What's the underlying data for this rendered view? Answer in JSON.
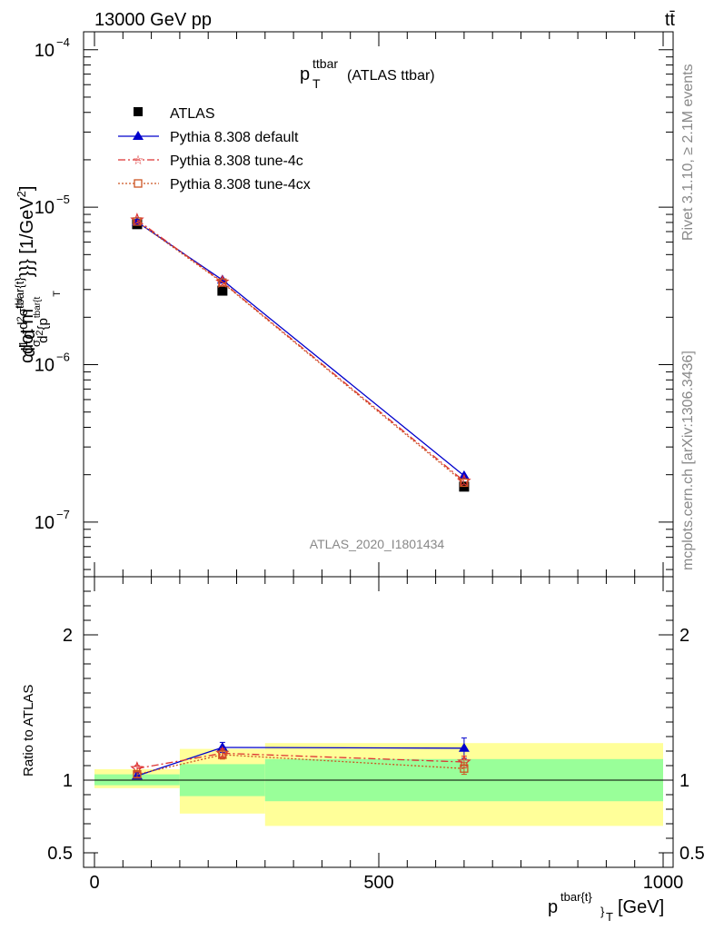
{
  "header": {
    "left": "13000 GeV pp",
    "right": "tt̄"
  },
  "side": {
    "rivet": "Rivet 3.1.10, ≥ 2.1M events",
    "source": "mcplots.cern.ch [arXiv:1306.3436]"
  },
  "chart_data": [
    {
      "type": "line",
      "title_main": "p",
      "title_sub": "T",
      "title_sup": "ttbar",
      "title_rest": "(ATLAS ttbar)",
      "watermark": "ATLAS_2020_I1801434",
      "ylabel": "d1/σdd²σ^tt/d²{p^tbar{t}}_T cdot m^tbar{t}}} [1/GeV²]",
      "ylabel_parts": {
        "d": "d",
        "one": "1",
        "sigma": "σ",
        "d2": "d",
        "dsq": "d",
        "sqr": "2",
        "sig2": "σ",
        "tt": "ttd",
        "den_d": "d",
        "den_2": "2",
        "den_p": "{p",
        "den_sup": "tbar{t",
        "den_sub": "T",
        "cdot": "cdot m",
        "m_sup": "tbar{t}",
        "close": "}}} [1/GeV",
        "unit_sup": "2",
        "unit_close": "]"
      },
      "yscale": "log",
      "ylim": [
        4.5e-08,
        0.00013
      ],
      "xlim": [
        -25,
        1000
      ],
      "y_ticks": [
        {
          "value": 0.0001,
          "base": "10",
          "exp": "−4"
        },
        {
          "value": 1e-05,
          "base": "10",
          "exp": "−5"
        },
        {
          "value": 1e-06,
          "base": "10",
          "exp": "−6"
        },
        {
          "value": 1e-07,
          "base": "10",
          "exp": "−7"
        }
      ],
      "x": [
        75,
        225,
        650
      ],
      "series": [
        {
          "name": "ATLAS",
          "color": "#000000",
          "marker": "square",
          "values": [
            7.8e-06,
            2.95e-06,
            1.68e-07
          ],
          "errors": [
            0,
            0,
            0
          ]
        },
        {
          "name": "Pythia 8.308 default",
          "color": "#0000cc",
          "marker": "triangle",
          "values": [
            8.05e-06,
            3.45e-06,
            1.97e-07
          ],
          "errors": [
            0,
            6e-08,
            1.3e-09
          ]
        },
        {
          "name": "Pythia 8.308 tune-4c",
          "color": "#dd3333",
          "marker": "star",
          "values": [
            8.3e-06,
            3.35e-06,
            1.82e-07
          ],
          "errors": [
            0,
            0,
            0
          ]
        },
        {
          "name": "Pythia 8.308 tune-4cx",
          "color": "#cc5522",
          "marker": "open-square",
          "values": [
            8.1e-06,
            3.32e-06,
            1.78e-07
          ],
          "errors": [
            0,
            0,
            0
          ]
        }
      ]
    },
    {
      "type": "line",
      "ylabel": "Ratio to ATLAS",
      "xlabel_main": "p",
      "xlabel_sup": "tbar{t}",
      "xlabel_sub": "}",
      "xlabel_sub2": "T",
      "xlabel_rest": "[GeV]",
      "xlim": [
        -25,
        1000
      ],
      "ylim": [
        0.4,
        2.4
      ],
      "x_ticks": [
        "0",
        "500",
        "1000"
      ],
      "x_tick_values": [
        0,
        500,
        1000
      ],
      "y_ticks": [
        "0.5",
        "1",
        "2"
      ],
      "y_tick_values": [
        0.5,
        1,
        2
      ],
      "bands": [
        {
          "x0": 0,
          "x1": 150,
          "green": [
            0.965,
            1.04
          ],
          "yellow": [
            0.945,
            1.075
          ]
        },
        {
          "x0": 150,
          "x1": 300,
          "green": [
            0.89,
            1.11
          ],
          "yellow": [
            0.77,
            1.215
          ]
        },
        {
          "x0": 300,
          "x1": 1000,
          "green": [
            0.855,
            1.145
          ],
          "yellow": [
            0.685,
            1.255
          ]
        }
      ],
      "series": [
        {
          "name": "Pythia 8.308 default",
          "color": "#0000cc",
          "marker": "triangle",
          "values": [
            1.03,
            1.225,
            1.22
          ],
          "errors": [
            0.02,
            0.035,
            0.07
          ]
        },
        {
          "name": "Pythia 8.308 tune-4c",
          "color": "#dd3333",
          "marker": "star",
          "values": [
            1.08,
            1.185,
            1.125
          ],
          "errors": [
            0.02,
            0.03,
            0.04
          ]
        },
        {
          "name": "Pythia 8.308 tune-4cx",
          "color": "#cc5522",
          "marker": "open-square",
          "values": [
            1.04,
            1.175,
            1.08
          ],
          "errors": [
            0.02,
            0.03,
            0.04
          ]
        }
      ]
    }
  ]
}
